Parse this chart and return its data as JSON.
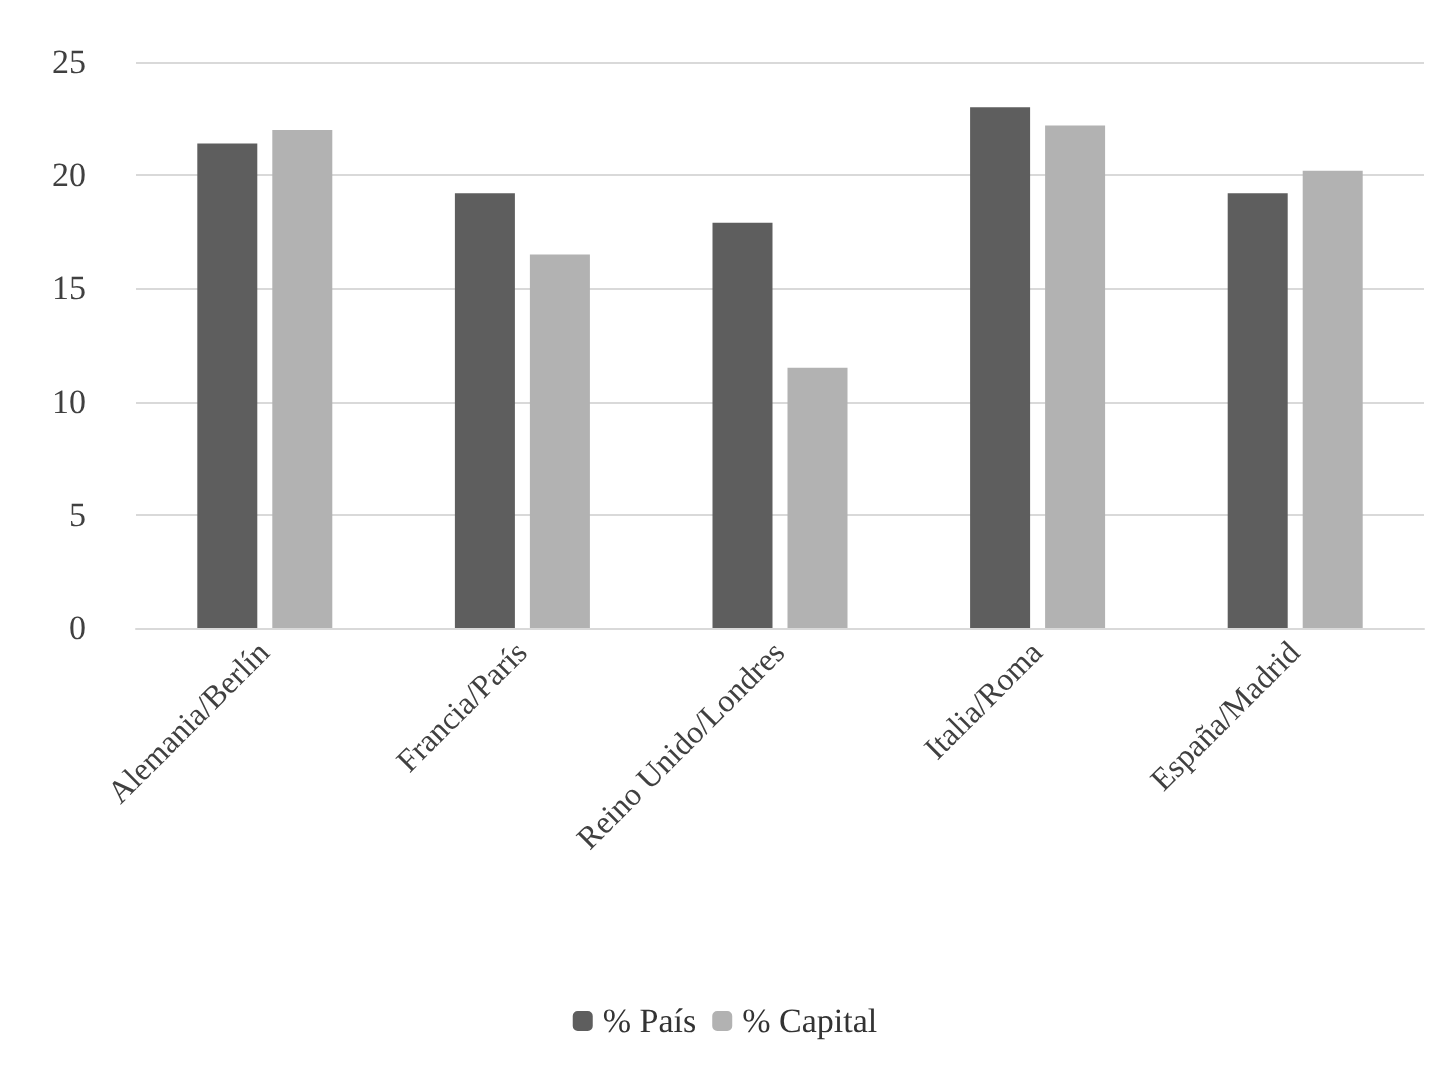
{
  "chart_data": {
    "type": "bar",
    "categories": [
      "Alemania/Berlín",
      "Francia/París",
      "Reino Unido/Londres",
      "Italia/Roma",
      "España/Madrid"
    ],
    "series": [
      {
        "name": "% País",
        "color": "#5e5e5e",
        "values": [
          21.4,
          19.2,
          17.9,
          23.0,
          19.2
        ]
      },
      {
        "name": "% Capital",
        "color": "#b2b2b2",
        "values": [
          22.0,
          16.5,
          11.5,
          22.2,
          20.2
        ]
      }
    ],
    "ylim": [
      0,
      25
    ],
    "yticks": [
      0,
      5,
      10,
      15,
      20,
      25
    ],
    "grid": "y",
    "legend": "bottom"
  }
}
